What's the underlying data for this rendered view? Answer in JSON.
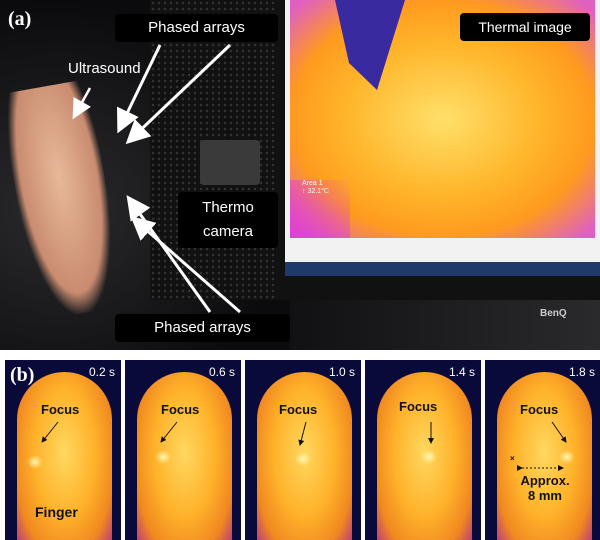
{
  "panel_a": {
    "label": "(a)",
    "phased_arrays_top": "Phased arrays",
    "ultrasound": "Ultrasound",
    "thermal_image": "Thermal image",
    "thermo_camera": "Thermo\ncamera",
    "phased_arrays_bottom": "Phased arrays",
    "screen_area_label": "Area 1",
    "screen_area_temp": "↑ 32.1°C",
    "monitor_brand": "BenQ"
  },
  "panel_b": {
    "label": "(b)",
    "frames": [
      {
        "time": "0.2 s",
        "focus": "Focus"
      },
      {
        "time": "0.6 s",
        "focus": "Focus"
      },
      {
        "time": "1.0 s",
        "focus": "Focus"
      },
      {
        "time": "1.4 s",
        "focus": "Focus"
      },
      {
        "time": "1.8 s",
        "focus": "Focus"
      }
    ],
    "finger_label": "Finger",
    "distance_label": "Approx.\n8 mm"
  }
}
